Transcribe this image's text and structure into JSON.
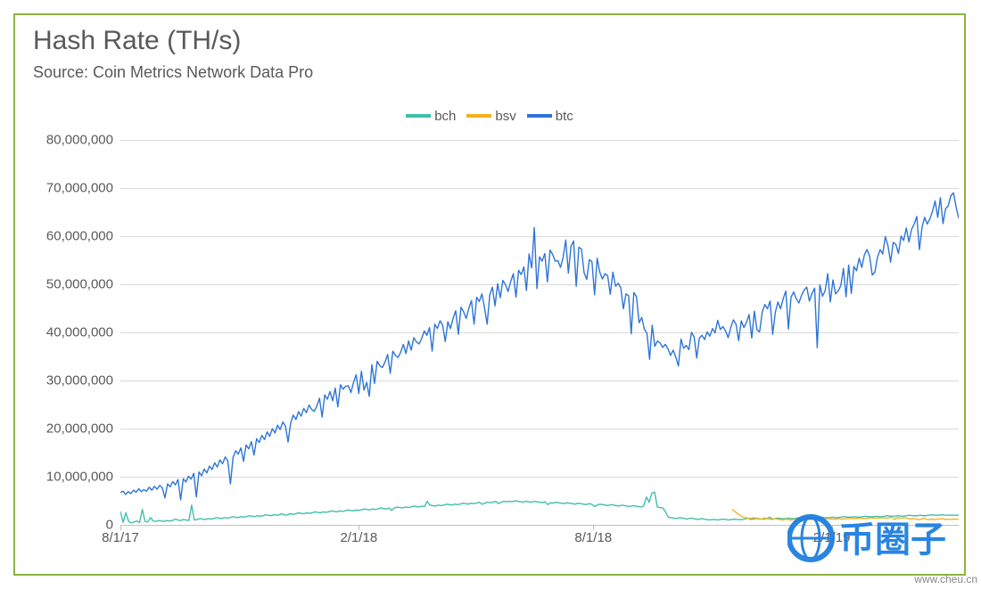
{
  "chart": {
    "type": "line",
    "title": "Hash Rate (TH/s)",
    "subtitle": "Source: Coin Metrics Network Data Pro",
    "title_fontsize": 30,
    "subtitle_fontsize": 18,
    "title_color": "#595959",
    "frame_border_color": "#8fb340",
    "frame_border_width": 2,
    "background_color": "#ffffff",
    "grid_color": "#d9d9d9",
    "axis_color": "#bfbfbf",
    "tick_label_color": "#595959",
    "tick_label_fontsize": 15,
    "line_width": 1.4,
    "ylim": [
      0,
      80000000
    ],
    "ytick_step": 10000000,
    "yticks": [
      {
        "v": 0,
        "label": "0"
      },
      {
        "v": 10000000,
        "label": "10,000,000"
      },
      {
        "v": 20000000,
        "label": "20,000,000"
      },
      {
        "v": 30000000,
        "label": "30,000,000"
      },
      {
        "v": 40000000,
        "label": "40,000,000"
      },
      {
        "v": 50000000,
        "label": "50,000,000"
      },
      {
        "v": 60000000,
        "label": "60,000,000"
      },
      {
        "v": 70000000,
        "label": "70,000,000"
      },
      {
        "v": 80000000,
        "label": "80,000,000"
      }
    ],
    "x_start": "2017-08-01",
    "x_end": "2019-05-10",
    "x_total_days": 647,
    "xticks": [
      {
        "day": 0,
        "label": "8/1/17"
      },
      {
        "day": 184,
        "label": "2/1/18"
      },
      {
        "day": 365,
        "label": "8/1/18"
      },
      {
        "day": 549,
        "label": "2/1/19"
      }
    ],
    "legend": [
      {
        "name": "bch",
        "color": "#3fbfad"
      },
      {
        "name": "bsv",
        "color": "#f5b01b"
      },
      {
        "name": "btc",
        "color": "#2e75d6"
      }
    ],
    "series": {
      "btc": {
        "color": "#2e75d6",
        "start_day": 0,
        "data": [
          6700000,
          7000000,
          6300000,
          6900000,
          6500000,
          7200000,
          6800000,
          7500000,
          6900000,
          7300000,
          7000000,
          7800000,
          7200000,
          8000000,
          7400000,
          8200000,
          7700000,
          5600000,
          8500000,
          7900000,
          9000000,
          8300000,
          9400000,
          5200000,
          9600000,
          8900000,
          10100000,
          9500000,
          10700000,
          5800000,
          11000000,
          10200000,
          11600000,
          10800000,
          12200000,
          11500000,
          12900000,
          12000000,
          13500000,
          12700000,
          14100000,
          13300000,
          8500000,
          14000000,
          15400000,
          14700000,
          16000000,
          13200000,
          16600000,
          15800000,
          17300000,
          14500000,
          17900000,
          17100000,
          18600000,
          17700000,
          19300000,
          18400000,
          20000000,
          19100000,
          20700000,
          19800000,
          21400000,
          20500000,
          17200000,
          21200000,
          22800000,
          21900000,
          23500000,
          22600000,
          24200000,
          23300000,
          24900000,
          24000000,
          23600000,
          24700000,
          26300000,
          22400000,
          27000000,
          26100000,
          27700000,
          25800000,
          28400000,
          24500000,
          29100000,
          28200000,
          28800000,
          28900000,
          27500000,
          29600000,
          31200000,
          27300000,
          31900000,
          28000000,
          29600000,
          26700000,
          33300000,
          29400000,
          34000000,
          33100000,
          32700000,
          33800000,
          35400000,
          31500000,
          36100000,
          35200000,
          34800000,
          35900000,
          37500000,
          35600000,
          38200000,
          36300000,
          38900000,
          38000000,
          37600000,
          38700000,
          40300000,
          39400000,
          41000000,
          36100000,
          41700000,
          40800000,
          42400000,
          41500000,
          38100000,
          42200000,
          40800000,
          42900000,
          44500000,
          39600000,
          45200000,
          44300000,
          42900000,
          45000000,
          46600000,
          41700000,
          47300000,
          46400000,
          48000000,
          45100000,
          41700000,
          47800000,
          49400000,
          45500000,
          50100000,
          47200000,
          50800000,
          49900000,
          48500000,
          50600000,
          52200000,
          47300000,
          52900000,
          52000000,
          53600000,
          48700000,
          56300000,
          53400000,
          61800000,
          49100000,
          55700000,
          54800000,
          56400000,
          50500000,
          57100000,
          56200000,
          54800000,
          54900000,
          53500000,
          55600000,
          59200000,
          52300000,
          57900000,
          59000000,
          49600000,
          57700000,
          57300000,
          52400000,
          51000000,
          55100000,
          54700000,
          47800000,
          55400000,
          52500000,
          51100000,
          52200000,
          51800000,
          47900000,
          52500000,
          49600000,
          50200000,
          49300000,
          44900000,
          48000000,
          47600000,
          39700000,
          48300000,
          47400000,
          42000000,
          43100000,
          40700000,
          39800000,
          34400000,
          41500000,
          37100000,
          38200000,
          37800000,
          36900000,
          37500000,
          36600000,
          35200000,
          36300000,
          34900000,
          33000000,
          38600000,
          36700000,
          37300000,
          36400000,
          40000000,
          39100000,
          34700000,
          38800000,
          39400000,
          38500000,
          40100000,
          39200000,
          40800000,
          39900000,
          42500000,
          40600000,
          41200000,
          40300000,
          38900000,
          41000000,
          42600000,
          41700000,
          38300000,
          42400000,
          41000000,
          42100000,
          43700000,
          38800000,
          44400000,
          40500000,
          40100000,
          44200000,
          45800000,
          44900000,
          46500000,
          39600000,
          44200000,
          46300000,
          44900000,
          47000000,
          48600000,
          40700000,
          47300000,
          48400000,
          47000000,
          46100000,
          47700000,
          48800000,
          49400000,
          46500000,
          48100000,
          49200000,
          36800000,
          49900000,
          47500000,
          48600000,
          52200000,
          46300000,
          50900000,
          48000000,
          48600000,
          49700000,
          53300000,
          47400000,
          54000000,
          48100000,
          53700000,
          52800000,
          55400000,
          53500000,
          56100000,
          57200000,
          55800000,
          51900000,
          52500000,
          55600000,
          57200000,
          56300000,
          59900000,
          58000000,
          54600000,
          58700000,
          58300000,
          56400000,
          60000000,
          59100000,
          61700000,
          58800000,
          61400000,
          62500000,
          64100000,
          57200000,
          61800000,
          63900000,
          62500000,
          63600000,
          65200000,
          67300000,
          63900000,
          68000000,
          62600000,
          65700000,
          66300000,
          68400000,
          69000000,
          66100000,
          63700000
        ]
      },
      "bch": {
        "color": "#3fbfad",
        "start_day": 0,
        "data": [
          2800000,
          500000,
          2500000,
          700000,
          400000,
          600000,
          800000,
          500000,
          3200000,
          700000,
          600000,
          1500000,
          800000,
          700000,
          900000,
          800000,
          700000,
          900000,
          800000,
          900000,
          1200000,
          1000000,
          900000,
          1100000,
          1000000,
          900000,
          4100000,
          1000000,
          1100000,
          1300000,
          1200000,
          1100000,
          1300000,
          1200000,
          1300000,
          1500000,
          1400000,
          1300000,
          1500000,
          1400000,
          1500000,
          1700000,
          1600000,
          1500000,
          1700000,
          1600000,
          1700000,
          1900000,
          1800000,
          1700000,
          1900000,
          1800000,
          1900000,
          2100000,
          2000000,
          1900000,
          2100000,
          2000000,
          2100000,
          2300000,
          2000000,
          2100000,
          2300000,
          2200000,
          2300000,
          2500000,
          2400000,
          2300000,
          2500000,
          2400000,
          2500000,
          2700000,
          2600000,
          2500000,
          2700000,
          2600000,
          2700000,
          2900000,
          2800000,
          2700000,
          2900000,
          2800000,
          2900000,
          3100000,
          3000000,
          2900000,
          3100000,
          3000000,
          3100000,
          3300000,
          3200000,
          3100000,
          3300000,
          3200000,
          3300000,
          3500000,
          3400000,
          3300000,
          3500000,
          3000000,
          3500000,
          3700000,
          3600000,
          3500000,
          3700000,
          3600000,
          3700000,
          3900000,
          3800000,
          3700000,
          3900000,
          3800000,
          4900000,
          4100000,
          4000000,
          3900000,
          4100000,
          4000000,
          4100000,
          4300000,
          4200000,
          4100000,
          4300000,
          4200000,
          4300000,
          4500000,
          4400000,
          4300000,
          4500000,
          4400000,
          4500000,
          4700000,
          4300000,
          4500000,
          4700000,
          4600000,
          4700000,
          4900000,
          4400000,
          4700000,
          4900000,
          4800000,
          4900000,
          4800000,
          5000000,
          4900000,
          4800000,
          4700000,
          4900000,
          4800000,
          4700000,
          4900000,
          4800000,
          4700000,
          4600000,
          4800000,
          4200000,
          4600000,
          4500000,
          4700000,
          4600000,
          4500000,
          4400000,
          4600000,
          4500000,
          4400000,
          4300000,
          4500000,
          4400000,
          4300000,
          4200000,
          4400000,
          4300000,
          3800000,
          4100000,
          4300000,
          4200000,
          4100000,
          4000000,
          4200000,
          4100000,
          4000000,
          3900000,
          4100000,
          4000000,
          3900000,
          3800000,
          4000000,
          3900000,
          3800000,
          3700000,
          3900000,
          5800000,
          4700000,
          6600000,
          6800000,
          3700000,
          3600000,
          3500000,
          2700000,
          1600000,
          1500000,
          1400000,
          1300000,
          1500000,
          1400000,
          1300000,
          1200000,
          1400000,
          1300000,
          1200000,
          1100000,
          1300000,
          1200000,
          1100000,
          1000000,
          1100000,
          1100000,
          1000000,
          1100000,
          1200000,
          1100000,
          1000000,
          1100000,
          1200000,
          1100000,
          1100000,
          1100000,
          1200000,
          1400000,
          1100000,
          1200000,
          1300000,
          1200000,
          1200000,
          1200000,
          1300000,
          1600000,
          1200000,
          1300000,
          1400000,
          1300000,
          1300000,
          1300000,
          1400000,
          1300000,
          1300000,
          1400000,
          1500000,
          1400000,
          1400000,
          1400000,
          1500000,
          1400000,
          1400000,
          1500000,
          1600000,
          1500000,
          1500000,
          1500000,
          1600000,
          1500000,
          1500000,
          1600000,
          1700000,
          1600000,
          1600000,
          1600000,
          1700000,
          1600000,
          1600000,
          1700000,
          1800000,
          1700000,
          1700000,
          1700000,
          1800000,
          1700000,
          1700000,
          1800000,
          1900000,
          1800000,
          1800000,
          1800000,
          1900000,
          1800000,
          1800000,
          1900000,
          2000000,
          1900000,
          1900000,
          1900000,
          2000000,
          1900000,
          1900000,
          2000000,
          2100000,
          2000000,
          2000000,
          2000000,
          2100000,
          2000000,
          2000000,
          2000000,
          2000000,
          2000000,
          2000000
        ]
      },
      "bsv": {
        "color": "#f5b01b",
        "start_day": 472,
        "data": [
          3200000,
          2800000,
          2400000,
          2000000,
          1600000,
          1500000,
          1400000,
          1300000,
          1500000,
          1400000,
          1300000,
          1200000,
          1400000,
          1300000,
          1200000,
          1100000,
          1300000,
          1200000,
          1100000,
          1000000,
          1200000,
          1100000,
          1000000,
          1100000,
          1200000,
          1100000,
          1000000,
          1100000,
          1200000,
          1100000,
          1100000,
          1100000,
          1200000,
          1100000,
          1100000,
          1200000,
          1300000,
          1200000,
          1200000,
          1200000,
          1300000,
          1200000,
          1200000,
          1300000,
          1400000,
          1300000,
          1300000,
          1300000,
          1400000,
          1300000,
          1300000,
          1400000,
          1500000,
          1400000,
          1400000,
          1400000,
          1500000,
          1400000,
          1400000,
          1500000,
          1600000,
          1100000,
          1500000,
          1400000,
          1400000,
          1500000,
          1300000,
          1200000,
          1300000,
          1200000,
          1100000,
          1200000,
          1400000,
          1100000,
          1100000,
          1200000,
          1100000,
          1200000,
          1200000,
          1300000,
          1100000,
          1200000,
          1100000,
          1200000,
          1200000,
          1200000
        ]
      }
    }
  },
  "watermark": {
    "url_text": "www.cheu.cn",
    "logo_text": "币圈子",
    "logo_color": "#1e7fe0",
    "url_color": "#888888"
  }
}
